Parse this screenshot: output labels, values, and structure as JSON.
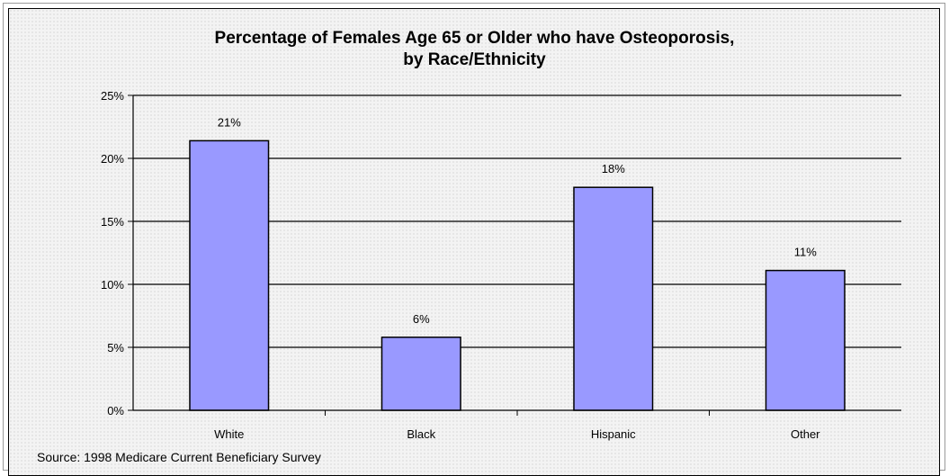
{
  "chart_data": {
    "type": "bar",
    "title": "Percentage of Females Age 65 or Older who have Osteoporosis,",
    "subtitle": "by Race/Ethnicity",
    "categories": [
      "White",
      "Black",
      "Hispanic",
      "Other"
    ],
    "values": [
      21.4,
      5.8,
      17.7,
      11.1
    ],
    "data_labels": [
      "21%",
      "6%",
      "18%",
      "11%"
    ],
    "ylim": [
      0,
      25
    ],
    "yticks": [
      0,
      5,
      10,
      15,
      20,
      25
    ],
    "ytick_labels": [
      "0%",
      "5%",
      "10%",
      "15%",
      "20%",
      "25%"
    ],
    "grid": true,
    "bar_color": "#9999ff",
    "bar_edge_color": "#000000"
  },
  "source": "Source: 1998 Medicare Current Beneficiary Survey"
}
